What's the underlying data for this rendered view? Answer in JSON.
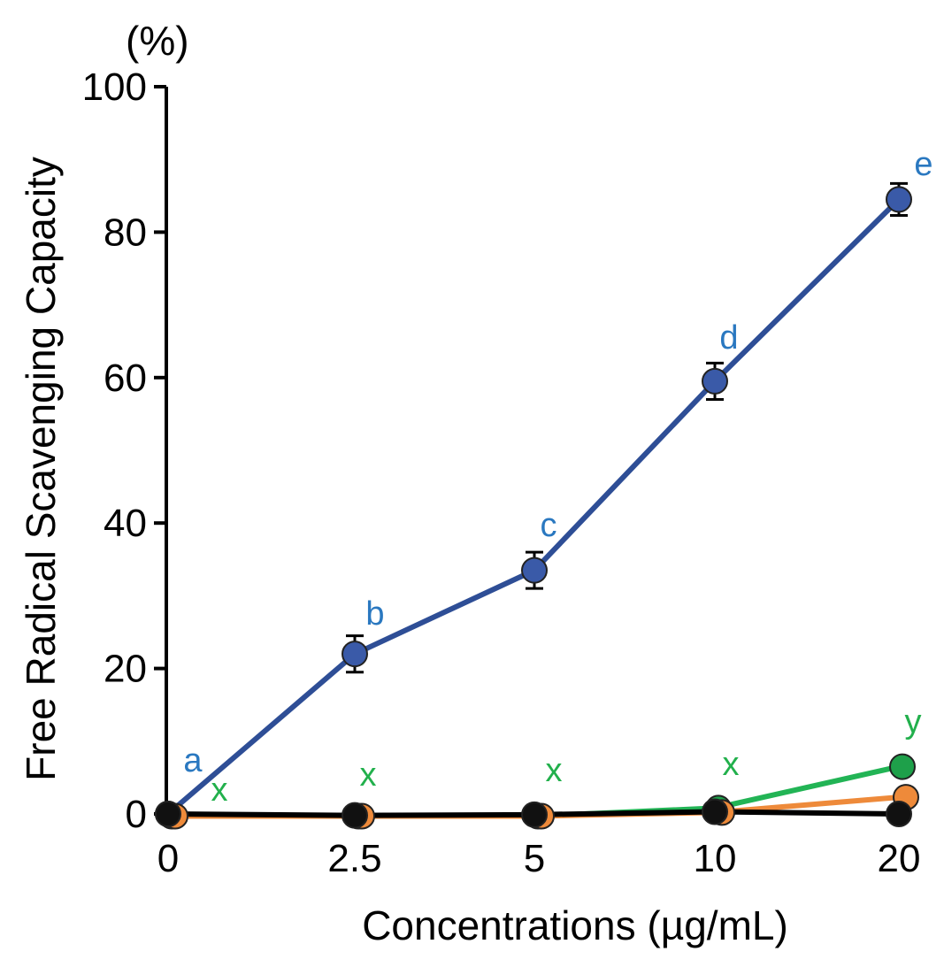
{
  "chart_data": {
    "type": "line",
    "title": "",
    "xlabel": "Concentrations (µg/mL)",
    "ylabel": "Free Radical Scavenging Capacity",
    "yunit": "(%)",
    "categories": [
      "0",
      "2.5",
      "5",
      "10",
      "20"
    ],
    "ylim": [
      0,
      100
    ],
    "yticks": [
      0,
      20,
      40,
      60,
      80,
      100
    ],
    "grid": false,
    "series": [
      {
        "name": "blue",
        "color": "#3A5AA8",
        "line_color": "#2E4E96",
        "values": [
          0,
          22,
          33.5,
          59.5,
          84.5
        ],
        "errors": [
          0.5,
          2.5,
          2.5,
          2.5,
          2.2
        ],
        "letters": [
          "a",
          "b",
          "c",
          "d",
          "e"
        ],
        "letter_color": "#2A78C0"
      },
      {
        "name": "green",
        "color": "#1EA04A",
        "line_color": "#22B455",
        "values": [
          -0.3,
          -0.3,
          -0.3,
          0.8,
          6.5
        ],
        "errors": [
          0,
          0.5,
          0.3,
          0.4,
          0.8
        ],
        "letters": [
          "x",
          "x",
          "x",
          "x",
          "y"
        ],
        "letter_color": "#22B04C"
      },
      {
        "name": "orange",
        "color": "#EE8A3A",
        "line_color": "#EE8A3A",
        "values": [
          -0.3,
          -0.3,
          -0.3,
          0.2,
          2.3
        ],
        "errors": [
          0,
          0,
          0,
          0,
          0
        ],
        "letters": [],
        "letter_color": "#EE8A3A"
      },
      {
        "name": "black",
        "color": "#111111",
        "line_color": "#000000",
        "values": [
          0,
          -0.2,
          -0.1,
          0.3,
          0
        ],
        "errors": [
          0,
          0,
          0,
          0,
          0
        ],
        "letters": [],
        "letter_color": "#000000"
      }
    ]
  }
}
